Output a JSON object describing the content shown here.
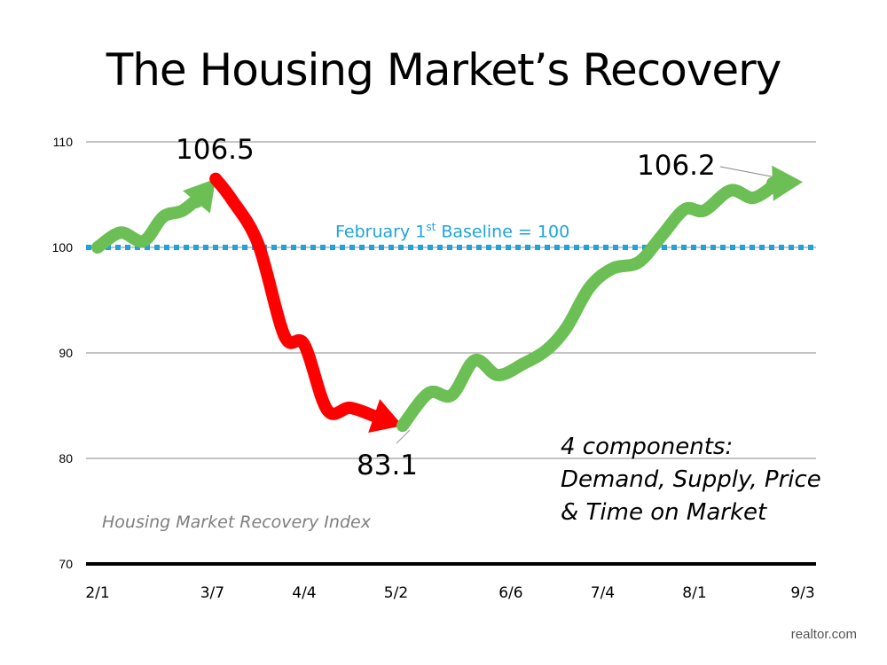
{
  "chart_data": {
    "type": "line",
    "title": "The Housing Market’s Recovery",
    "xlabel": "",
    "ylabel": "",
    "ylim": [
      70,
      110
    ],
    "yticks": [
      70,
      80,
      90,
      100,
      110
    ],
    "x_unit": "days since Feb 1",
    "xlim": [
      0,
      215
    ],
    "xticks": [
      {
        "label": "2/1",
        "x": 0
      },
      {
        "label": "3/7",
        "x": 35
      },
      {
        "label": "4/4",
        "x": 63
      },
      {
        "label": "5/2",
        "x": 91
      },
      {
        "label": "6/6",
        "x": 126
      },
      {
        "label": "7/4",
        "x": 154
      },
      {
        "label": "8/1",
        "x": 182
      },
      {
        "label": "9/3",
        "x": 215
      }
    ],
    "grid": true,
    "baseline": {
      "value": 100,
      "label_pre": "February 1",
      "label_sup": "st",
      "label_post": " Baseline = 100",
      "color": "#1fa3dc"
    },
    "series": [
      {
        "name": "rise",
        "color": "#6cbf55",
        "x": [
          0,
          7,
          14,
          20,
          26,
          32,
          36
        ],
        "y": [
          100,
          101.4,
          100.6,
          102.9,
          103.5,
          105,
          106.5
        ]
      },
      {
        "name": "decline",
        "color": "#ff0000",
        "x": [
          36,
          41,
          49,
          57,
          63,
          70,
          77,
          93
        ],
        "y": [
          106.5,
          104.5,
          100.3,
          91.6,
          90.8,
          84.6,
          84.8,
          83.1
        ]
      },
      {
        "name": "recovery",
        "color": "#6cbf55",
        "x": [
          93,
          101,
          108,
          115,
          122,
          130,
          137,
          143,
          150,
          157,
          165,
          172,
          179,
          185,
          193,
          200,
          207,
          215
        ],
        "y": [
          83.1,
          86.2,
          86,
          89.3,
          87.9,
          89,
          90.3,
          92.4,
          96.2,
          98,
          98.6,
          101.1,
          103.6,
          103.5,
          105.4,
          104.7,
          106.1,
          106.2
        ]
      }
    ],
    "annotations": {
      "peak": "106.5",
      "trough": "83.1",
      "latest": "106.2",
      "index_label": "Housing Market Recovery Index",
      "components": [
        "4 components:",
        "Demand, Supply, Price",
        "& Time on Market"
      ]
    }
  },
  "source": "realtor.com"
}
